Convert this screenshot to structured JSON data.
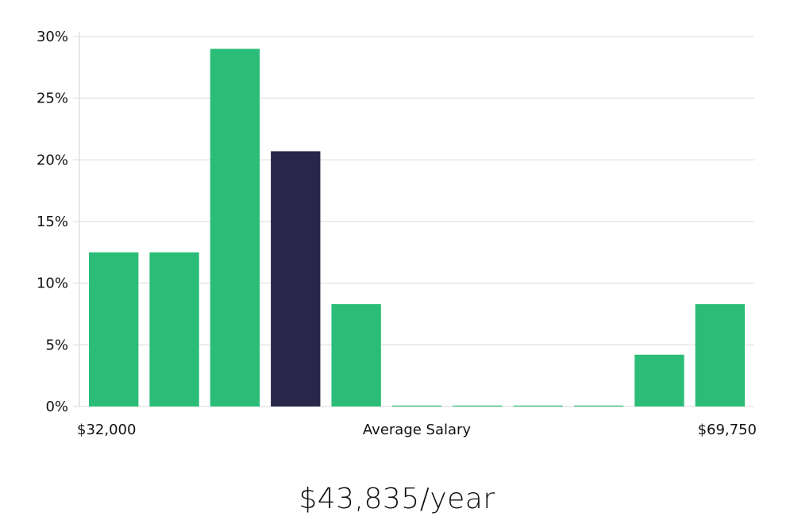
{
  "chart_data": {
    "type": "bar",
    "title": "",
    "xlabel": "Average Salary",
    "ylabel": "",
    "x_range_labels": {
      "min": "$32,000",
      "max": "$69,750"
    },
    "y_ticks": [
      "0%",
      "5%",
      "10%",
      "15%",
      "20%",
      "25%",
      "30%"
    ],
    "ylim": [
      0,
      30
    ],
    "values": [
      12.5,
      12.5,
      29.0,
      20.7,
      8.3,
      0,
      0,
      0,
      0,
      4.2,
      8.3
    ],
    "highlight_index": 3,
    "grid": true,
    "colors": {
      "bar": "#2bbd77",
      "highlight": "#29264a",
      "grid": "#d9d9d9",
      "axis": "#cfcfcf"
    }
  },
  "summary": {
    "salary_text": "$43,835/year"
  }
}
